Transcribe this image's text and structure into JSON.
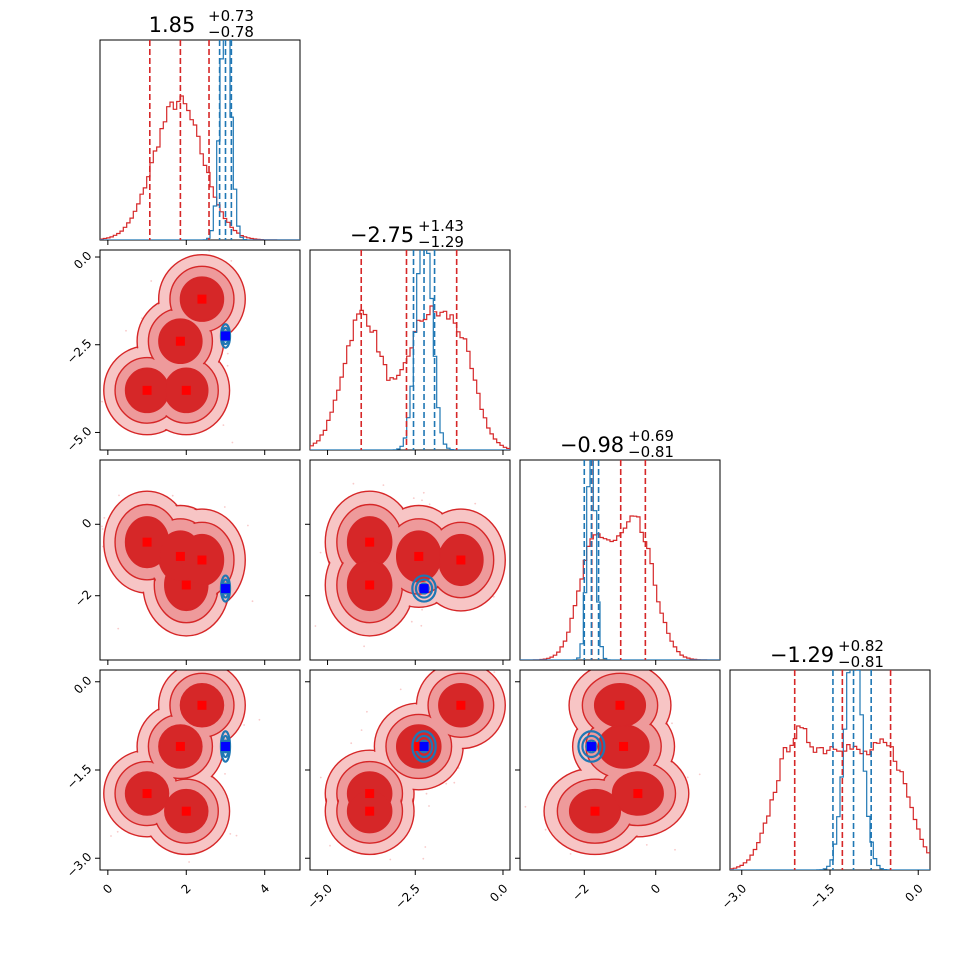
{
  "chart_data": {
    "type": "corner",
    "params": [
      {
        "range": [
          -0.2,
          4.9
        ],
        "ticks": [
          0,
          2,
          4
        ],
        "tick_labels": [
          "0",
          "2",
          "4"
        ],
        "title_value": "1.85",
        "title_plus": "+0.73",
        "title_minus": "−0.78",
        "red_quantiles": [
          1.07,
          1.85,
          2.58
        ],
        "blue_quantiles": [
          2.85,
          3.0,
          3.15
        ],
        "red_hist": {
          "mu": 1.8,
          "sd": 0.62,
          "modes": [
            [
              1.8,
              0.62,
              1.0
            ]
          ]
        },
        "blue_hist": {
          "modes": [
            [
              3.0,
              0.14,
              1.0
            ]
          ]
        }
      },
      {
        "range": [
          -5.5,
          0.2
        ],
        "ticks": [
          -5.0,
          -2.5,
          0.0
        ],
        "tick_labels": [
          "−5.0",
          "−2.5",
          "0.0"
        ],
        "title_value": "−2.75",
        "title_plus": "+1.43",
        "title_minus": "−1.29",
        "red_quantiles": [
          -4.04,
          -2.75,
          -1.32
        ],
        "blue_quantiles": [
          -2.55,
          -2.25,
          -1.95
        ],
        "red_hist": {
          "modes": [
            [
              -4.0,
              0.55,
              1.0
            ],
            [
              -2.3,
              0.5,
              0.85
            ],
            [
              -1.3,
              0.5,
              0.8
            ]
          ]
        },
        "blue_hist": {
          "modes": [
            [
              -2.25,
              0.22,
              1.0
            ]
          ]
        }
      },
      {
        "range": [
          -3.8,
          1.8
        ],
        "ticks": [
          -2,
          0
        ],
        "tick_labels": [
          "−2",
          "0"
        ],
        "title_value": "−0.98",
        "title_plus": "+0.69",
        "title_minus": "−0.81",
        "red_quantiles": [
          -1.79,
          -0.98,
          -0.29
        ],
        "blue_quantiles": [
          -2.0,
          -1.8,
          -1.6
        ],
        "red_hist": {
          "modes": [
            [
              -1.7,
              0.45,
              0.85
            ],
            [
              -0.55,
              0.5,
              1.0
            ]
          ]
        },
        "blue_hist": {
          "modes": [
            [
              -1.8,
              0.12,
              1.0
            ]
          ]
        }
      },
      {
        "range": [
          -3.2,
          0.2
        ],
        "ticks": [
          -3.0,
          -1.5,
          0.0
        ],
        "tick_labels": [
          "−3.0",
          "−1.5",
          "0.0"
        ],
        "title_value": "−1.29",
        "title_plus": "+0.82",
        "title_minus": "−0.81",
        "red_quantiles": [
          -2.1,
          -1.29,
          -0.47
        ],
        "blue_quantiles": [
          -1.45,
          -1.1,
          -0.8
        ],
        "red_hist": {
          "modes": [
            [
              -2.1,
              0.35,
              1.0
            ],
            [
              -1.3,
              0.35,
              0.85
            ],
            [
              -0.5,
              0.35,
              0.9
            ]
          ]
        },
        "blue_hist": {
          "modes": [
            [
              -1.1,
              0.15,
              1.0
            ]
          ]
        }
      }
    ],
    "red_modes": [
      [
        1.0,
        -3.8,
        -0.5,
        -1.9
      ],
      [
        2.0,
        -3.8,
        -1.7,
        -2.2
      ],
      [
        1.85,
        -2.4,
        -0.9,
        -1.1
      ],
      [
        2.4,
        -1.2,
        -1.0,
        -0.4
      ]
    ],
    "blue_mode": [
      3.0,
      -2.25,
      -1.8,
      -1.1
    ],
    "blob_radius": [
      0.48,
      0.55,
      0.62,
      0.32
    ],
    "colors": {
      "red": "#d62728",
      "red_light": "#f7c5c5",
      "red_mid": "#ee9a9b",
      "blue": "#1f77b4",
      "blue_marker": "#0000ff",
      "red_marker": "#ff0000"
    }
  }
}
